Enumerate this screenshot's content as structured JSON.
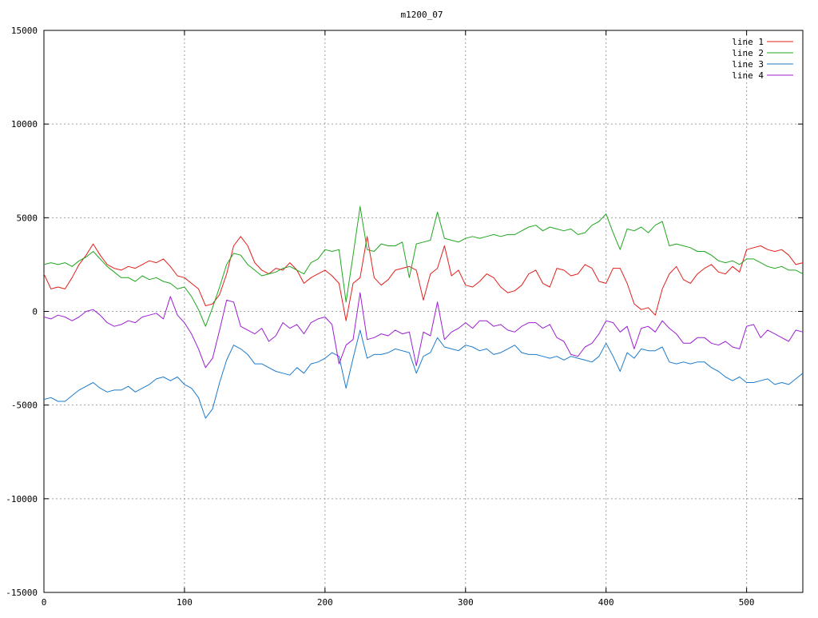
{
  "chart_data": {
    "type": "line",
    "title": "m1200_07",
    "xlabel": "",
    "ylabel": "",
    "xlim": [
      0,
      540
    ],
    "ylim": [
      -15000,
      15000
    ],
    "x_ticks": [
      0,
      100,
      200,
      300,
      400,
      500
    ],
    "y_ticks": [
      -15000,
      -10000,
      -5000,
      0,
      5000,
      10000,
      15000
    ],
    "grid": true,
    "legend_position": "top-right",
    "series": [
      {
        "name": "line 1",
        "color": "#e0201b",
        "x": [
          0,
          5,
          10,
          15,
          20,
          25,
          30,
          35,
          40,
          45,
          50,
          55,
          60,
          65,
          70,
          75,
          80,
          85,
          90,
          95,
          100,
          105,
          110,
          115,
          120,
          125,
          130,
          135,
          140,
          145,
          150,
          155,
          160,
          165,
          170,
          175,
          180,
          185,
          190,
          195,
          200,
          205,
          210,
          215,
          220,
          225,
          230,
          235,
          240,
          245,
          250,
          255,
          260,
          265,
          270,
          275,
          280,
          285,
          290,
          295,
          300,
          305,
          310,
          315,
          320,
          325,
          330,
          335,
          340,
          345,
          350,
          355,
          360,
          365,
          370,
          375,
          380,
          385,
          390,
          395,
          400,
          405,
          410,
          415,
          420,
          425,
          430,
          435,
          440,
          445,
          450,
          455,
          460,
          465,
          470,
          475,
          480,
          485,
          490,
          495,
          500,
          505,
          510,
          515,
          520,
          525,
          530,
          535,
          540
        ],
        "y": [
          2000,
          1200,
          1300,
          1200,
          1800,
          2500,
          3000,
          3600,
          3000,
          2500,
          2300,
          2200,
          2400,
          2300,
          2500,
          2700,
          2600,
          2800,
          2400,
          1900,
          1800,
          1500,
          1200,
          300,
          400,
          900,
          2000,
          3500,
          4000,
          3500,
          2600,
          2200,
          2000,
          2300,
          2200,
          2600,
          2200,
          1500,
          1800,
          2000,
          2200,
          1900,
          1500,
          -500,
          1500,
          1800,
          4000,
          1800,
          1400,
          1700,
          2200,
          2300,
          2400,
          2200,
          600,
          2000,
          2300,
          3500,
          1900,
          2200,
          1400,
          1300,
          1600,
          2000,
          1800,
          1300,
          1000,
          1100,
          1400,
          2000,
          2200,
          1500,
          1300,
          2300,
          2200,
          1900,
          2000,
          2500,
          2300,
          1600,
          1500,
          2300,
          2300,
          1500,
          400,
          100,
          200,
          -200,
          1200,
          2000,
          2400,
          1700,
          1500,
          2000,
          2300,
          2500,
          2100,
          2000,
          2400,
          2100,
          3300,
          3400,
          3500,
          3300,
          3200,
          3300,
          3000,
          2500,
          2600
        ]
      },
      {
        "name": "line 2",
        "color": "#21a61f",
        "x": [
          0,
          5,
          10,
          15,
          20,
          25,
          30,
          35,
          40,
          45,
          50,
          55,
          60,
          65,
          70,
          75,
          80,
          85,
          90,
          95,
          100,
          105,
          110,
          115,
          120,
          125,
          130,
          135,
          140,
          145,
          150,
          155,
          160,
          165,
          170,
          175,
          180,
          185,
          190,
          195,
          200,
          205,
          210,
          215,
          220,
          225,
          230,
          235,
          240,
          245,
          250,
          255,
          260,
          265,
          270,
          275,
          280,
          285,
          290,
          295,
          300,
          305,
          310,
          315,
          320,
          325,
          330,
          335,
          340,
          345,
          350,
          355,
          360,
          365,
          370,
          375,
          380,
          385,
          390,
          395,
          400,
          405,
          410,
          415,
          420,
          425,
          430,
          435,
          440,
          445,
          450,
          455,
          460,
          465,
          470,
          475,
          480,
          485,
          490,
          495,
          500,
          505,
          510,
          515,
          520,
          525,
          530,
          535,
          540
        ],
        "y": [
          2500,
          2600,
          2500,
          2600,
          2400,
          2700,
          2900,
          3200,
          2800,
          2400,
          2100,
          1800,
          1800,
          1600,
          1900,
          1700,
          1800,
          1600,
          1500,
          1200,
          1300,
          800,
          100,
          -800,
          200,
          1300,
          2500,
          3100,
          3000,
          2500,
          2200,
          1900,
          2000,
          2100,
          2300,
          2400,
          2200,
          2000,
          2600,
          2800,
          3300,
          3200,
          3300,
          500,
          3000,
          5600,
          3300,
          3200,
          3600,
          3500,
          3500,
          3700,
          1800,
          3600,
          3700,
          3800,
          5300,
          3900,
          3800,
          3700,
          3900,
          4000,
          3900,
          4000,
          4100,
          4000,
          4100,
          4100,
          4300,
          4500,
          4600,
          4300,
          4500,
          4400,
          4300,
          4400,
          4100,
          4200,
          4600,
          4800,
          5200,
          4200,
          3300,
          4400,
          4300,
          4500,
          4200,
          4600,
          4800,
          3500,
          3600,
          3500,
          3400,
          3200,
          3200,
          3000,
          2700,
          2600,
          2700,
          2500,
          2800,
          2800,
          2600,
          2400,
          2300,
          2400,
          2200,
          2200,
          2000
        ]
      },
      {
        "name": "line 3",
        "color": "#1e7bc9",
        "x": [
          0,
          5,
          10,
          15,
          20,
          25,
          30,
          35,
          40,
          45,
          50,
          55,
          60,
          65,
          70,
          75,
          80,
          85,
          90,
          95,
          100,
          105,
          110,
          115,
          120,
          125,
          130,
          135,
          140,
          145,
          150,
          155,
          160,
          165,
          170,
          175,
          180,
          185,
          190,
          195,
          200,
          205,
          210,
          215,
          220,
          225,
          230,
          235,
          240,
          245,
          250,
          255,
          260,
          265,
          270,
          275,
          280,
          285,
          290,
          295,
          300,
          305,
          310,
          315,
          320,
          325,
          330,
          335,
          340,
          345,
          350,
          355,
          360,
          365,
          370,
          375,
          380,
          385,
          390,
          395,
          400,
          405,
          410,
          415,
          420,
          425,
          430,
          435,
          440,
          445,
          450,
          455,
          460,
          465,
          470,
          475,
          480,
          485,
          490,
          495,
          500,
          505,
          510,
          515,
          520,
          525,
          530,
          535,
          540
        ],
        "y": [
          -4700,
          -4600,
          -4800,
          -4800,
          -4500,
          -4200,
          -4000,
          -3800,
          -4100,
          -4300,
          -4200,
          -4200,
          -4000,
          -4300,
          -4100,
          -3900,
          -3600,
          -3500,
          -3700,
          -3500,
          -3900,
          -4100,
          -4600,
          -5700,
          -5200,
          -3800,
          -2600,
          -1800,
          -2000,
          -2300,
          -2800,
          -2800,
          -3000,
          -3200,
          -3300,
          -3400,
          -3000,
          -3300,
          -2800,
          -2700,
          -2500,
          -2200,
          -2400,
          -4100,
          -2500,
          -1000,
          -2500,
          -2300,
          -2300,
          -2200,
          -2000,
          -2100,
          -2200,
          -3300,
          -2400,
          -2200,
          -1400,
          -1900,
          -2000,
          -2100,
          -1800,
          -1900,
          -2100,
          -2000,
          -2300,
          -2200,
          -2000,
          -1800,
          -2200,
          -2300,
          -2300,
          -2400,
          -2500,
          -2400,
          -2600,
          -2400,
          -2500,
          -2600,
          -2700,
          -2400,
          -1700,
          -2400,
          -3200,
          -2200,
          -2500,
          -2000,
          -2100,
          -2100,
          -1900,
          -2700,
          -2800,
          -2700,
          -2800,
          -2700,
          -2700,
          -3000,
          -3200,
          -3500,
          -3700,
          -3500,
          -3800,
          -3800,
          -3700,
          -3600,
          -3900,
          -3800,
          -3900,
          -3600,
          -3300
        ]
      },
      {
        "name": "line 4",
        "color": "#9c1fd1",
        "x": [
          0,
          5,
          10,
          15,
          20,
          25,
          30,
          35,
          40,
          45,
          50,
          55,
          60,
          65,
          70,
          75,
          80,
          85,
          90,
          95,
          100,
          105,
          110,
          115,
          120,
          125,
          130,
          135,
          140,
          145,
          150,
          155,
          160,
          165,
          170,
          175,
          180,
          185,
          190,
          195,
          200,
          205,
          210,
          215,
          220,
          225,
          230,
          235,
          240,
          245,
          250,
          255,
          260,
          265,
          270,
          275,
          280,
          285,
          290,
          295,
          300,
          305,
          310,
          315,
          320,
          325,
          330,
          335,
          340,
          345,
          350,
          355,
          360,
          365,
          370,
          375,
          380,
          385,
          390,
          395,
          400,
          405,
          410,
          415,
          420,
          425,
          430,
          435,
          440,
          445,
          450,
          455,
          460,
          465,
          470,
          475,
          480,
          485,
          490,
          495,
          500,
          505,
          510,
          515,
          520,
          525,
          530,
          535,
          540
        ],
        "y": [
          -300,
          -400,
          -200,
          -300,
          -500,
          -300,
          0,
          100,
          -200,
          -600,
          -800,
          -700,
          -500,
          -600,
          -300,
          -200,
          -100,
          -400,
          800,
          -200,
          -600,
          -1200,
          -2000,
          -3000,
          -2500,
          -1000,
          600,
          500,
          -800,
          -1000,
          -1200,
          -900,
          -1600,
          -1300,
          -600,
          -900,
          -700,
          -1200,
          -600,
          -400,
          -300,
          -700,
          -2800,
          -1800,
          -1500,
          1000,
          -1500,
          -1400,
          -1200,
          -1300,
          -1000,
          -1200,
          -1100,
          -2900,
          -1100,
          -1300,
          500,
          -1500,
          -1100,
          -900,
          -600,
          -900,
          -500,
          -500,
          -800,
          -700,
          -1000,
          -1100,
          -800,
          -600,
          -600,
          -900,
          -700,
          -1400,
          -1600,
          -2300,
          -2400,
          -1900,
          -1700,
          -1200,
          -500,
          -600,
          -1100,
          -800,
          -2000,
          -900,
          -800,
          -1100,
          -500,
          -900,
          -1200,
          -1700,
          -1700,
          -1400,
          -1400,
          -1700,
          -1800,
          -1600,
          -1900,
          -2000,
          -800,
          -700,
          -1400,
          -1000,
          -1200,
          -1400,
          -1600,
          -1000,
          -1100
        ]
      }
    ]
  }
}
